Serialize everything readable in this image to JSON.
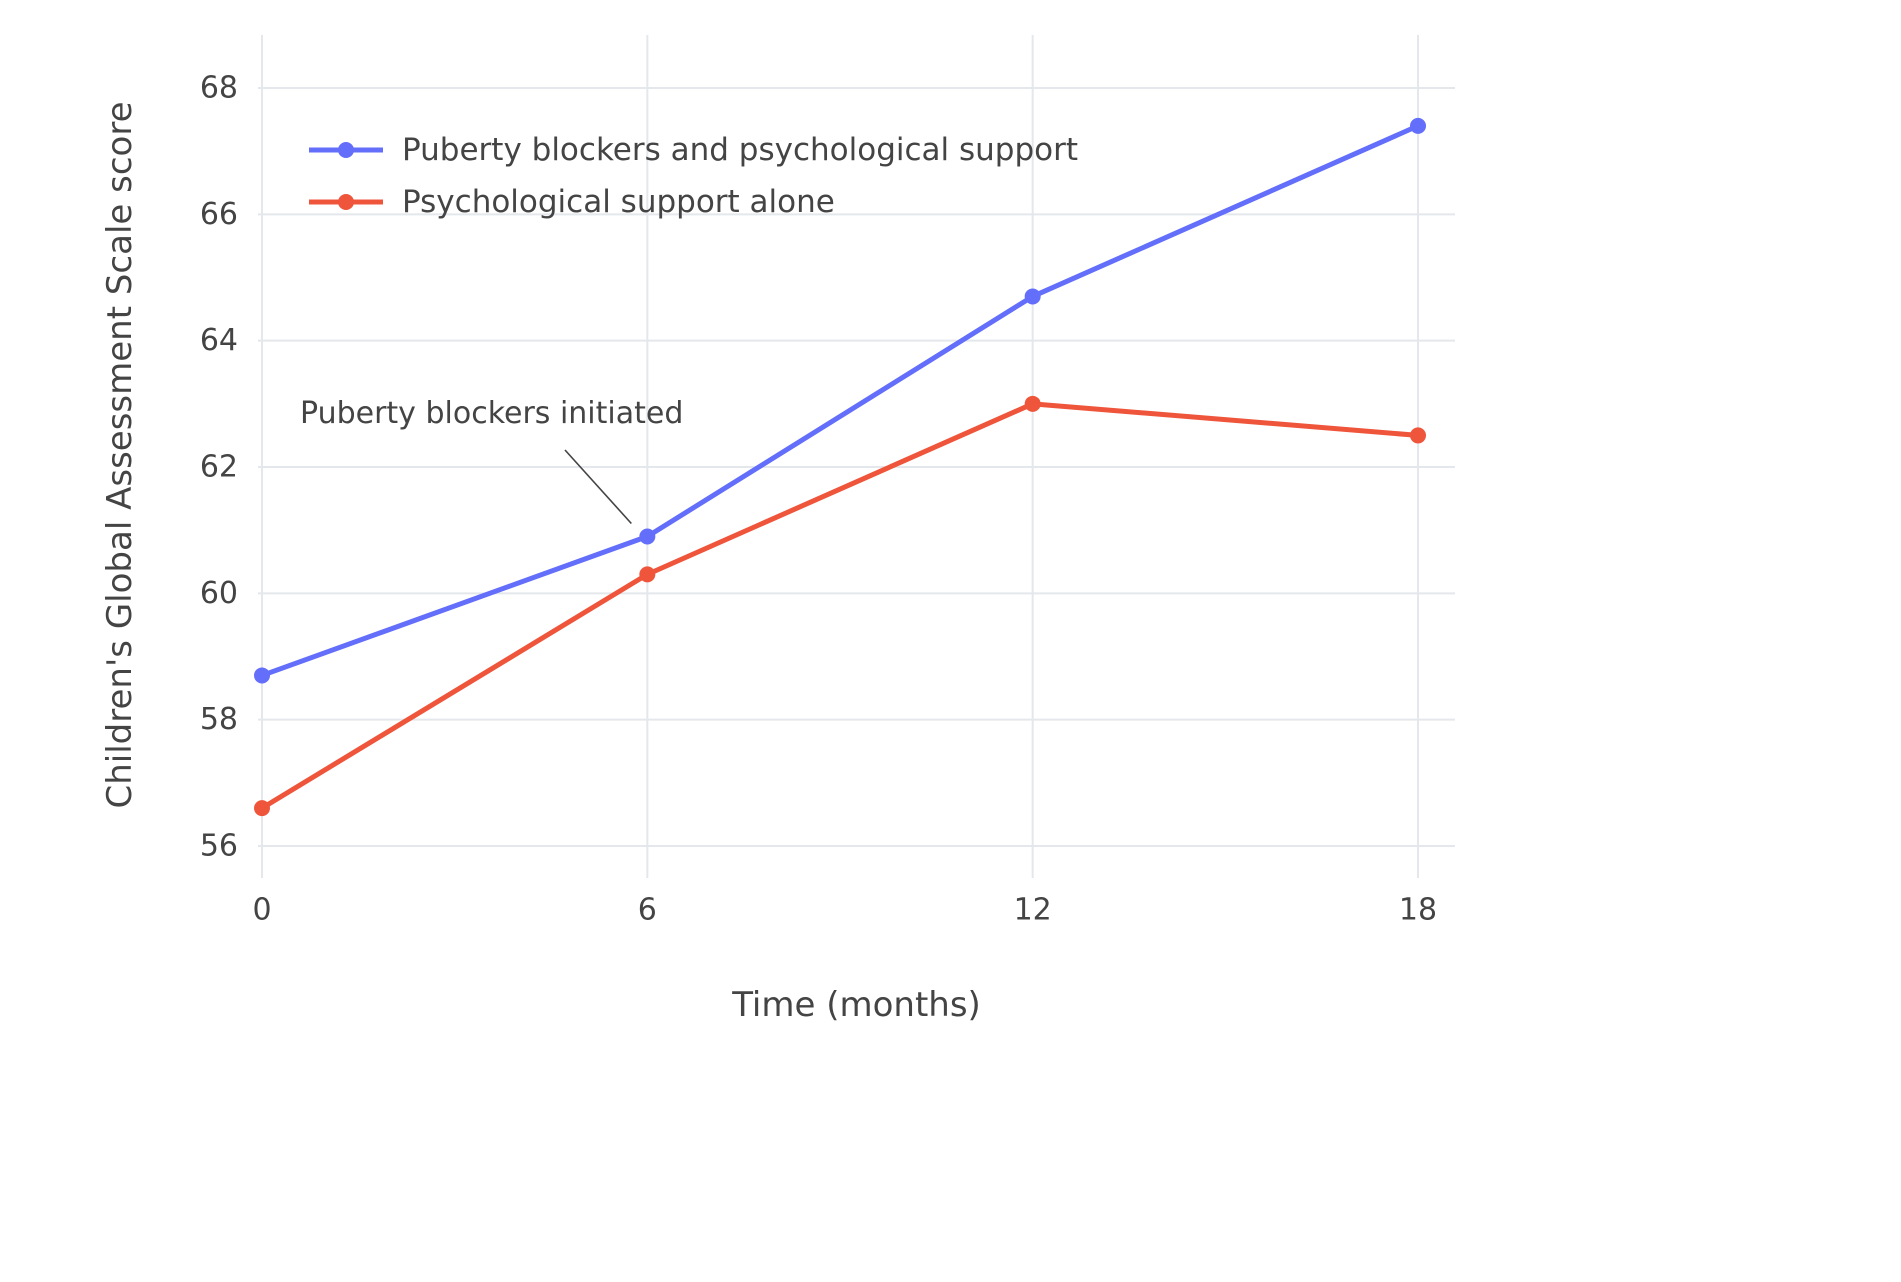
{
  "chart_data": {
    "type": "line",
    "title": "",
    "xlabel": "Time (months)",
    "ylabel": "Children's Global Assessment Scale score",
    "x": [
      0,
      6,
      12,
      18
    ],
    "xticks": [
      0,
      6,
      12,
      18
    ],
    "yticks": [
      56,
      58,
      60,
      62,
      64,
      66,
      68
    ],
    "xlim": [
      0,
      18
    ],
    "ylim": [
      55.5,
      68.8
    ],
    "grid": true,
    "legend_position": "top-left-inside",
    "series": [
      {
        "name": "Puberty blockers and psychological support",
        "color": "#636EFA",
        "values": [
          58.7,
          60.9,
          64.7,
          67.4
        ]
      },
      {
        "name": "Psychological support alone",
        "color": "#EF553B",
        "values": [
          56.6,
          60.3,
          63.0,
          62.5
        ]
      }
    ],
    "annotation": {
      "text": "Puberty blockers initiated",
      "target_x": 6,
      "target_y": 60.9
    },
    "colors": {
      "grid": "#E4E7EB",
      "text": "#444444",
      "background": "#FFFFFF"
    }
  }
}
